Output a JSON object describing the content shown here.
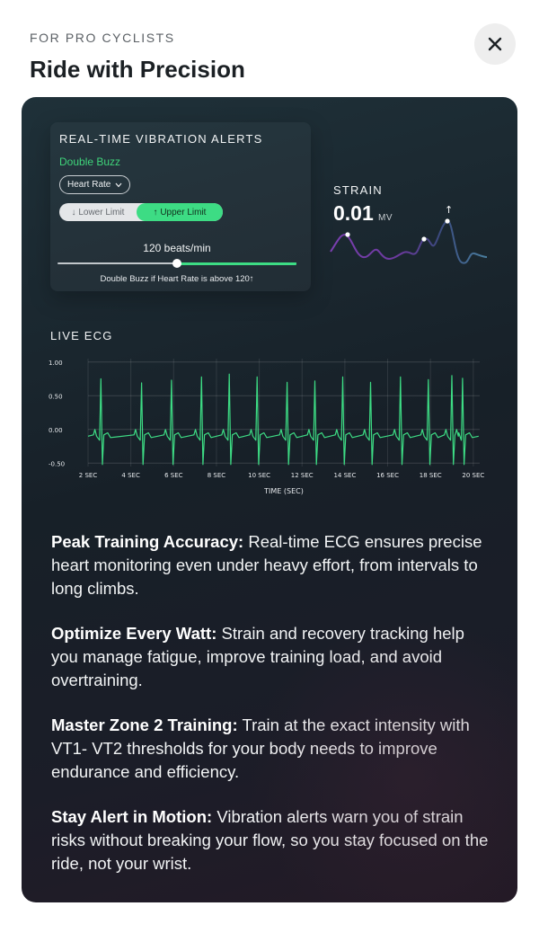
{
  "header": {
    "eyebrow": "FOR PRO CYCLISTS",
    "title": "Ride with Precision",
    "close_icon": "close-icon"
  },
  "alerts": {
    "title": "REAL-TIME VIBRATION ALERTS",
    "mode": "Double Buzz",
    "metric_selected": "Heart Rate",
    "lower_label": "↓ Lower Limit",
    "upper_label": "↑ Upper Limit",
    "active_limit": "upper",
    "slider_value_text": "120 beats/min",
    "slider_fraction": 0.5,
    "caption": "Double Buzz if Heart Rate is above 120↑",
    "accent_color": "#3ddc84"
  },
  "strain": {
    "label": "STRAIN",
    "value": "0.01",
    "unit": "MV",
    "arrow": "↑",
    "colors": [
      "#7a3fb0",
      "#3a4a7e",
      "#4a7fa0"
    ]
  },
  "ecg": {
    "label": "LIVE ECG",
    "line_color": "#3ddc84"
  },
  "chart_data": {
    "type": "line",
    "title": "",
    "xlabel": "TIME (SEC)",
    "ylabel": "",
    "x_ticks": [
      "2 SEC",
      "4 SEC",
      "6 SEC",
      "8 SEC",
      "10 SEC",
      "12 SEC",
      "14 SEC",
      "16 SEC",
      "18 SEC",
      "20 SEC"
    ],
    "x_tick_values": [
      2,
      4,
      6,
      8,
      10,
      12,
      14,
      16,
      18,
      20
    ],
    "y_ticks": [
      "1.00",
      "0.50",
      "0.00",
      "-0.50"
    ],
    "y_tick_values": [
      1.0,
      0.5,
      0.0,
      -0.5
    ],
    "xlim": [
      2,
      20.3
    ],
    "ylim": [
      -0.55,
      1.05
    ],
    "grid": true,
    "series": [
      {
        "values_description_only": false,
        "r_peaks_x": [
          2.6,
          4.5,
          5.9,
          7.3,
          8.6,
          9.9,
          11.3,
          12.6,
          13.9,
          15.2,
          16.6,
          17.9,
          19.0,
          19.5
        ],
        "r_peaks_y": [
          0.75,
          0.69,
          0.73,
          0.78,
          0.82,
          0.78,
          0.7,
          0.72,
          0.78,
          0.7,
          0.78,
          0.74,
          0.8,
          0.76
        ]
      }
    ]
  },
  "features": [
    {
      "heading": "Peak Training Accuracy:",
      "body": " Real-time ECG ensures precise heart monitoring even under heavy effort, from intervals to long climbs."
    },
    {
      "heading": "Optimize Every Watt:",
      "body": " Strain and recovery tracking help you manage fatigue, improve training load, and avoid overtraining."
    },
    {
      "heading": "Master Zone 2 Training:",
      "body": " Train at the exact intensity with VT1- VT2 thresholds for your body needs to improve endurance and efficiency."
    },
    {
      "heading": "Stay Alert in Motion:",
      "body": " Vibration alerts warn you of strain risks without breaking your flow, so you stay focused on the ride, not your wrist."
    }
  ]
}
